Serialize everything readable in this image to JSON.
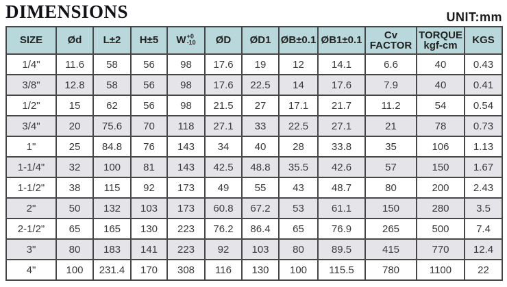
{
  "header": {
    "title": "DIMENSIONS",
    "unit_label": "UNIT:mm"
  },
  "table": {
    "columns": [
      {
        "label": "SIZE"
      },
      {
        "label": "Ød"
      },
      {
        "label": "L±2"
      },
      {
        "label": "H±5"
      },
      {
        "label": "W",
        "tol_top": "+0",
        "tol_bottom": "-10"
      },
      {
        "label": "ØD"
      },
      {
        "label": "ØD1"
      },
      {
        "label": "ØB±0.1"
      },
      {
        "label": "ØB1±0.1"
      },
      {
        "label": "Cv",
        "label2": "FACTOR"
      },
      {
        "label": "TORQUE",
        "label2": "kgf-cm"
      },
      {
        "label": "KGS"
      }
    ],
    "rows": [
      [
        "1/4\"",
        "11.6",
        "58",
        "56",
        "98",
        "17.6",
        "19",
        "12",
        "14.1",
        "6.6",
        "40",
        "0.43"
      ],
      [
        "3/8\"",
        "12.8",
        "58",
        "56",
        "98",
        "17.6",
        "22.5",
        "14",
        "17.6",
        "7.9",
        "40",
        "0.41"
      ],
      [
        "1/2\"",
        "15",
        "62",
        "56",
        "98",
        "21.5",
        "27",
        "17.1",
        "21.7",
        "11.2",
        "54",
        "0.54"
      ],
      [
        "3/4\"",
        "20",
        "75.6",
        "70",
        "118",
        "27.1",
        "33",
        "22.5",
        "27.1",
        "21",
        "78",
        "0.73"
      ],
      [
        "1\"",
        "25",
        "84.8",
        "76",
        "143",
        "34",
        "40",
        "28",
        "33.8",
        "35",
        "106",
        "1.13"
      ],
      [
        "1-1/4\"",
        "32",
        "100",
        "81",
        "143",
        "42.5",
        "48.8",
        "35.5",
        "42.6",
        "57",
        "150",
        "1.67"
      ],
      [
        "1-1/2\"",
        "38",
        "115",
        "92",
        "173",
        "49",
        "55",
        "43",
        "48.7",
        "80",
        "200",
        "2.43"
      ],
      [
        "2\"",
        "50",
        "132",
        "103",
        "173",
        "60.8",
        "67.2",
        "53",
        "61.1",
        "150",
        "280",
        "3.5"
      ],
      [
        "2-1/2\"",
        "65",
        "165",
        "130",
        "223",
        "76.2",
        "86.4",
        "65",
        "76.9",
        "265",
        "500",
        "7.4"
      ],
      [
        "3\"",
        "80",
        "183",
        "141",
        "223",
        "92",
        "103",
        "80",
        "89.5",
        "415",
        "770",
        "12.4"
      ],
      [
        "4\"",
        "100",
        "231.4",
        "170",
        "308",
        "116",
        "130",
        "100",
        "115.5",
        "780",
        "1100",
        "22"
      ]
    ]
  },
  "colors": {
    "header_bg": "#b8d8db",
    "stripe_bg": "#e5e5e9",
    "border": "#474747",
    "text": "#3a3a3a"
  }
}
